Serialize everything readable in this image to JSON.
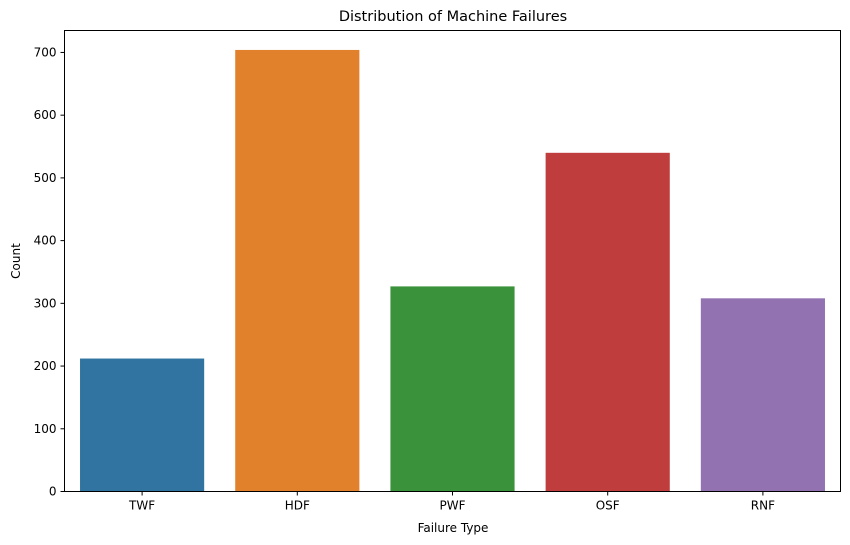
{
  "chart_data": {
    "type": "bar",
    "title": "Distribution of Machine Failures",
    "xlabel": "Failure Type",
    "ylabel": "Count",
    "categories": [
      "TWF",
      "HDF",
      "PWF",
      "OSF",
      "RNF"
    ],
    "values": [
      212,
      704,
      327,
      540,
      308
    ],
    "colors": [
      "#3274a1",
      "#e1812c",
      "#3a923a",
      "#c03d3e",
      "#9372b2"
    ],
    "ylim": [
      0,
      735
    ],
    "yticks": [
      0,
      100,
      200,
      300,
      400,
      500,
      600,
      700
    ],
    "grid": false,
    "legend": "none"
  }
}
